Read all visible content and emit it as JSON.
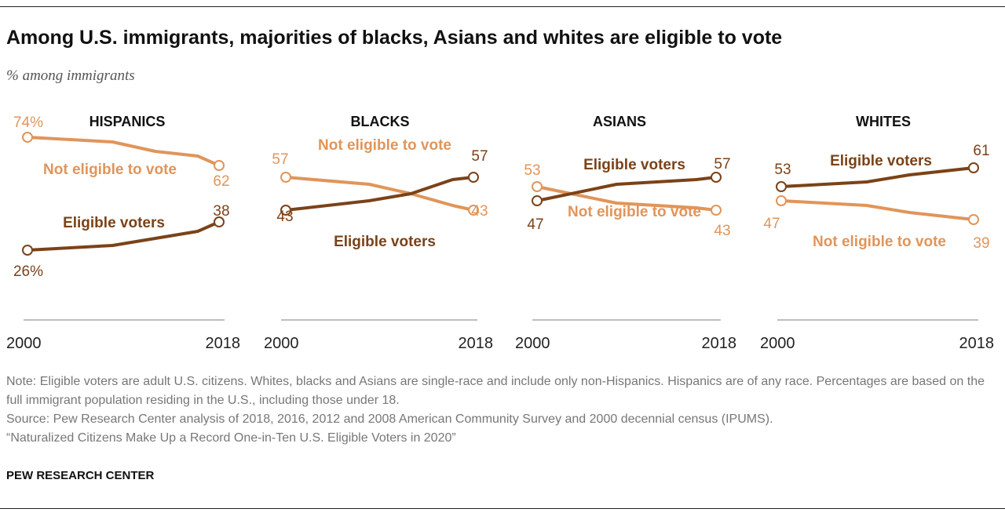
{
  "title": "Among U.S. immigrants, majorities of blacks, Asians and whites are eligible to vote",
  "subtitle": "% among immigrants",
  "chart_data": [
    {
      "type": "line",
      "title": "HISPANICS",
      "x": [
        2000,
        2008,
        2012,
        2016,
        2018
      ],
      "xtick_labels": [
        "2000",
        "2018"
      ],
      "series": [
        {
          "name": "Not eligible to vote",
          "values": [
            74,
            72,
            68,
            66,
            62
          ],
          "start_label": "74%",
          "end_label": "62"
        },
        {
          "name": "Eligible voters",
          "values": [
            26,
            28,
            31,
            34,
            38
          ],
          "start_label": "26%",
          "end_label": "38"
        }
      ]
    },
    {
      "type": "line",
      "title": "BLACKS",
      "x": [
        2000,
        2008,
        2012,
        2016,
        2018
      ],
      "xtick_labels": [
        "2000",
        "2018"
      ],
      "series": [
        {
          "name": "Not eligible to vote",
          "values": [
            57,
            54,
            50,
            45,
            43
          ],
          "start_label": "57",
          "end_label": "43"
        },
        {
          "name": "Eligible voters",
          "values": [
            43,
            47,
            50,
            56,
            57
          ],
          "start_label": "43",
          "end_label": "57"
        }
      ]
    },
    {
      "type": "line",
      "title": "ASIANS",
      "x": [
        2000,
        2008,
        2012,
        2016,
        2018
      ],
      "xtick_labels": [
        "2000",
        "2018"
      ],
      "series": [
        {
          "name": "Not eligible to vote",
          "values": [
            53,
            46,
            45,
            44,
            43
          ],
          "start_label": "53",
          "end_label": "43"
        },
        {
          "name": "Eligible voters",
          "values": [
            47,
            54,
            55,
            56,
            57
          ],
          "start_label": "47",
          "end_label": "57"
        }
      ]
    },
    {
      "type": "line",
      "title": "WHITES",
      "x": [
        2000,
        2008,
        2012,
        2016,
        2018
      ],
      "xtick_labels": [
        "2000",
        "2018"
      ],
      "series": [
        {
          "name": "Not eligible to vote",
          "values": [
            47,
            45,
            42,
            40,
            39
          ],
          "start_label": "47",
          "end_label": "39"
        },
        {
          "name": "Eligible voters",
          "values": [
            53,
            55,
            58,
            60,
            61
          ],
          "start_label": "53",
          "end_label": "61"
        }
      ]
    }
  ],
  "colors": {
    "not_eligible": "#e0955a",
    "eligible": "#7b4218"
  },
  "note": "Note: Eligible voters are adult U.S. citizens. Whites, blacks and Asians are single-race and include only non-Hispanics. Hispanics are of any race. Percentages are based on the full immigrant population residing in the U.S., including those under 18.",
  "source": "Source: Pew Research Center analysis of 2018, 2016, 2012 and 2008 American Community Survey and 2000 decennial census (IPUMS).",
  "report": "“Naturalized Citizens Make Up a Record One-in-Ten U.S. Eligible Voters in 2020”",
  "brand": "PEW RESEARCH CENTER"
}
